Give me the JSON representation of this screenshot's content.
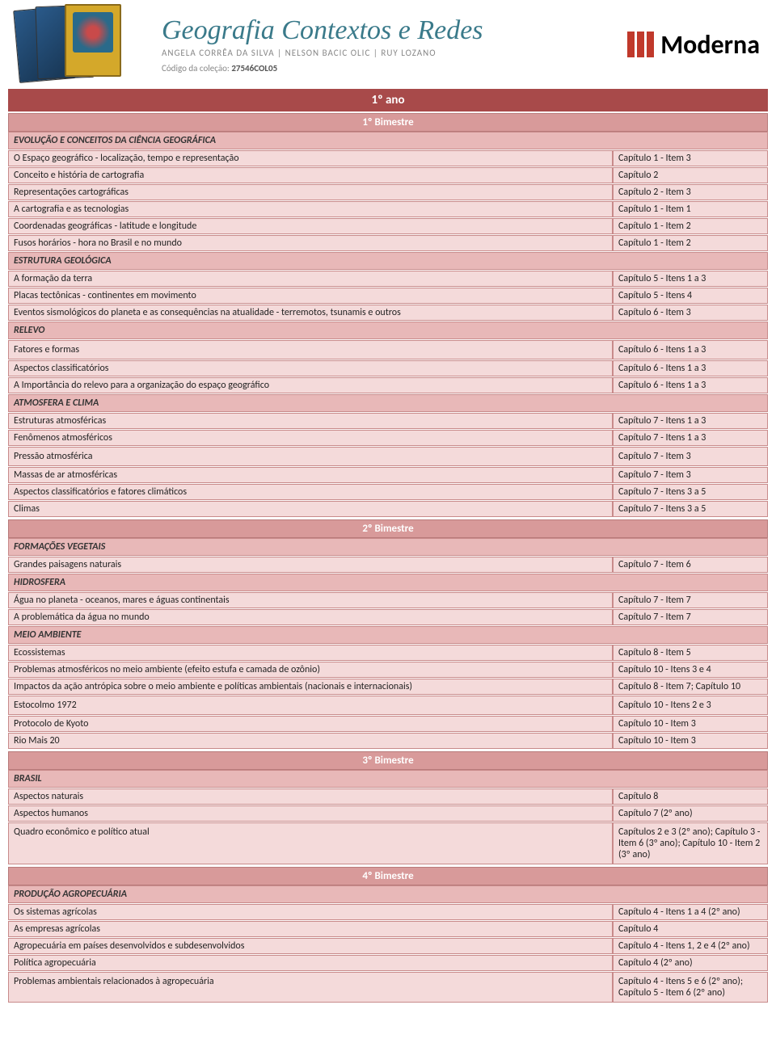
{
  "header": {
    "series_title": "Geografia Contextos e Redes",
    "authors": "ANGELA CORRÊA DA SILVA | NELSON BACIC OLIC | RUY LOZANO",
    "codigo_label": "Código da coleção:",
    "codigo_value": "27546COL05",
    "publisher": "Moderna"
  },
  "year_title": "1º ano",
  "bimestres": [
    {
      "title": "1º Bimestre",
      "sections": [
        {
          "heading": "EVOLUÇÃO E CONCEITOS DA CIÊNCIA GEOGRÁFICA",
          "rows": [
            {
              "topic": "O Espaço geográfico - localização, tempo e representação",
              "ref": "Capítulo 1 - Item 3"
            },
            {
              "topic": "Conceito e história de cartografia",
              "ref": "Capítulo 2"
            },
            {
              "topic": "Representações cartográficas",
              "ref": "Capítulo 2 - Item 3"
            },
            {
              "topic": "A cartografia e as tecnologias",
              "ref": "Capítulo 1 - Item 1"
            },
            {
              "topic": "Coordenadas geográficas - latitude e longitude",
              "ref": "Capítulo 1 - Item 2"
            },
            {
              "topic": "Fusos horários - hora no Brasil e no mundo",
              "ref": "Capítulo 1 - Item 2"
            }
          ]
        },
        {
          "heading": "ESTRUTURA GEOLÓGICA",
          "rows": [
            {
              "topic": "A formação da terra",
              "ref": "Capítulo 5 - Itens 1 a 3"
            },
            {
              "topic": "Placas tectônicas - continentes em movimento",
              "ref": "Capítulo 5 - Itens 4"
            },
            {
              "topic": "Eventos sismológicos do planeta e as consequências na atualidade - terremotos, tsunamis e outros",
              "ref": "Capítulo 6 - Item 3"
            }
          ]
        },
        {
          "heading": "RELEVO",
          "rows": [
            {
              "topic": "Fatores e formas",
              "ref": "Capítulo 6 - Itens 1 a 3",
              "tall": true
            },
            {
              "topic": "Aspectos classificatórios",
              "ref": "Capítulo 6 - Itens 1 a 3"
            },
            {
              "topic": "A Importância do relevo para a organização do espaço geográfico",
              "ref": "Capítulo 6 - Itens 1 a 3"
            }
          ]
        },
        {
          "heading": "ATMOSFERA E CLIMA",
          "rows": [
            {
              "topic": "Estruturas atmosféricas",
              "ref": "Capítulo 7 - Itens 1 a 3"
            },
            {
              "topic": "Fenômenos atmosféricos",
              "ref": "Capítulo 7 - Itens 1 a 3"
            },
            {
              "topic": "Pressão atmosférica",
              "ref": "Capítulo 7 - Item 3",
              "tall": true
            },
            {
              "topic": "Massas de ar atmosféricas",
              "ref": "Capítulo 7 - Item 3"
            },
            {
              "topic": "Aspectos classificatórios e fatores climáticos",
              "ref": "Capítulo 7 - Itens 3 a 5"
            },
            {
              "topic": "Climas",
              "ref": "Capítulo 7 - Itens 3 a 5"
            }
          ]
        }
      ]
    },
    {
      "title": "2º Bimestre",
      "sections": [
        {
          "heading": "FORMAÇÕES VEGETAIS",
          "rows": [
            {
              "topic": "Grandes paisagens naturais",
              "ref": "Capítulo 7 - Item 6"
            }
          ]
        },
        {
          "heading": "HIDROSFERA",
          "rows": [
            {
              "topic": "Água no planeta - oceanos, mares e águas continentais",
              "ref": "Capítulo 7 - Item 7"
            },
            {
              "topic": "A problemática da água no mundo",
              "ref": "Capítulo 7 - Item 7"
            }
          ]
        },
        {
          "heading": "MEIO AMBIENTE",
          "rows": [
            {
              "topic": "Ecossistemas",
              "ref": "Capítulo 8 - Item 5"
            },
            {
              "topic": "Problemas atmosféricos no meio ambiente (efeito estufa e camada de ozônio)",
              "ref": "Capítulo 10 - Itens 3 e 4"
            },
            {
              "topic": "Impactos da ação antrópica sobre o meio ambiente e políticas ambientais (nacionais e internacionais)",
              "ref": "Capítulo 8 - Item 7; Capítulo 10"
            },
            {
              "topic": "Estocolmo 1972",
              "ref": "Capítulo 10 - Itens 2 e 3",
              "tall": true
            },
            {
              "topic": "Protocolo de Kyoto",
              "ref": "Capítulo 10 - Item 3"
            },
            {
              "topic": "Rio Mais 20",
              "ref": "Capítulo 10 - Item 3"
            }
          ]
        }
      ]
    },
    {
      "title": "3º Bimestre",
      "sections": [
        {
          "heading": "BRASIL",
          "rows": [
            {
              "topic": "Aspectos naturais",
              "ref": "Capítulo 8"
            },
            {
              "topic": "Aspectos humanos",
              "ref": "Capítulo 7 (2º ano)"
            },
            {
              "topic": "Quadro econômico e político atual",
              "ref": "Capítulos 2 e 3 (2º ano); Capítulo 3 - Item 6 (3º ano); Capítulo 10 - Item 2 (3º ano)",
              "tall": true
            }
          ]
        }
      ]
    },
    {
      "title": "4º Bimestre",
      "sections": [
        {
          "heading": "PRODUÇÃO AGROPECUÁRIA",
          "rows": [
            {
              "topic": "Os sistemas agrícolas",
              "ref": "Capítulo 4 - Itens 1 a 4 (2º ano)"
            },
            {
              "topic": "As empresas agrícolas",
              "ref": "Capítulo 4"
            },
            {
              "topic": "Agropecuária em países desenvolvidos e subdesenvolvidos",
              "ref": "Capítulo 4 - Itens 1, 2 e 4 (2º ano)"
            },
            {
              "topic": "Política agropecuária",
              "ref": "Capítulo 4  (2º ano)"
            },
            {
              "topic": "Problemas ambientais relacionados à agropecuária",
              "ref": "Capítulo 4  - Itens 5 e 6 (2º ano); Capítulo 5 - Item 6 (2º ano)",
              "tall": true
            }
          ]
        }
      ]
    }
  ],
  "colors": {
    "year_bar_bg": "#a84a4a",
    "bimestre_bg": "#d89a9a",
    "section_bg": "#e8b8b8",
    "row_bg": "#f4dada",
    "border": "#c88a8a",
    "logo_red": "#c0392b",
    "title_teal": "#3a7a8a"
  }
}
